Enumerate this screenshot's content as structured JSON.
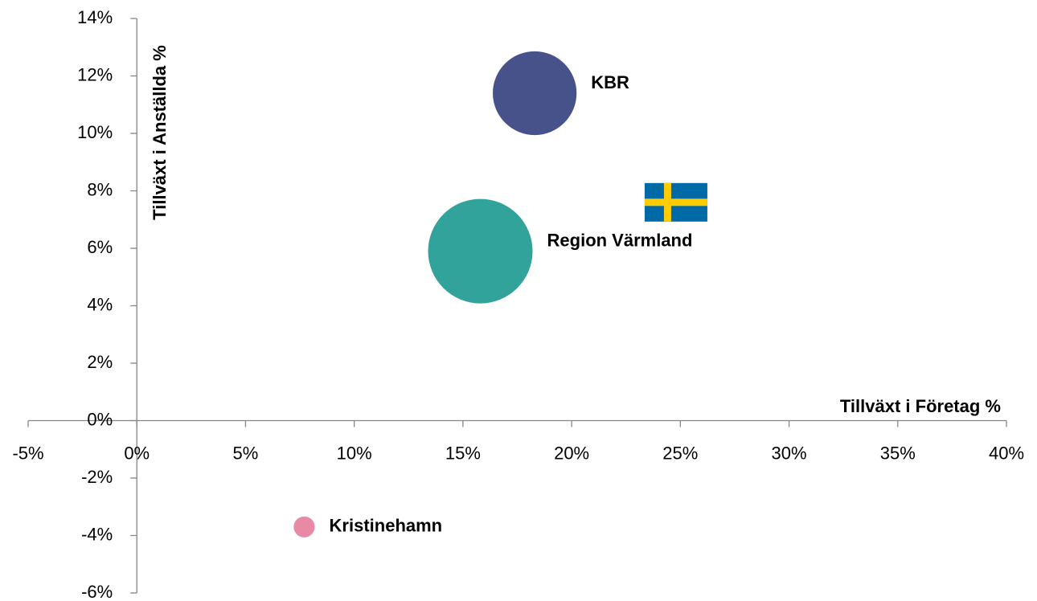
{
  "chart_data": {
    "type": "bubble",
    "xlabel": "Tillväxt i Företag %",
    "ylabel": "Tillväxt i Anställda %",
    "series": [
      {
        "name": "KBR",
        "color": "#47528a",
        "x": [
          18.3
        ],
        "values": [
          11.4
        ],
        "sizes": [
          2700
        ]
      },
      {
        "name": "Region Värmland",
        "color": "#31a39b",
        "x": [
          15.8
        ],
        "values": [
          5.9
        ],
        "sizes": [
          4200
        ]
      },
      {
        "name": "Kristinehamn",
        "color": "#e88aa5",
        "x": [
          7.7
        ],
        "values": [
          -3.7
        ],
        "sizes": [
          170
        ]
      }
    ],
    "flag_point": {
      "x": 24.8,
      "y": 7.6
    },
    "xlim": [
      -5,
      40
    ],
    "xticks": [
      {
        "value": -5,
        "label": "-5%"
      },
      {
        "value": 0,
        "label": "0%"
      },
      {
        "value": 5,
        "label": "5%"
      },
      {
        "value": 10,
        "label": "10%"
      },
      {
        "value": 15,
        "label": "15%"
      },
      {
        "value": 20,
        "label": "20%"
      },
      {
        "value": 25,
        "label": "25%"
      },
      {
        "value": 30,
        "label": "30%"
      },
      {
        "value": 35,
        "label": "35%"
      },
      {
        "value": 40,
        "label": "40%"
      }
    ],
    "ylim": [
      -6,
      14
    ],
    "yticks": [
      {
        "value": -6,
        "label": "-6%"
      },
      {
        "value": -4,
        "label": "-4%"
      },
      {
        "value": -2,
        "label": "-2%"
      },
      {
        "value": 0,
        "label": "0%"
      },
      {
        "value": 2,
        "label": "2%"
      },
      {
        "value": 4,
        "label": "4%"
      },
      {
        "value": 6,
        "label": "6%"
      },
      {
        "value": 8,
        "label": "8%"
      },
      {
        "value": 10,
        "label": "10%"
      },
      {
        "value": 12,
        "label": "12%"
      },
      {
        "value": 14,
        "label": "14%"
      }
    ],
    "grid": false
  }
}
